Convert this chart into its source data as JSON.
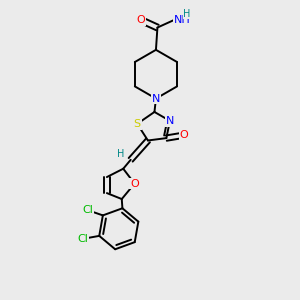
{
  "bg_color": "#ebebeb",
  "colors": {
    "O": "#ff0000",
    "N": "#0000ff",
    "S": "#cccc00",
    "Cl": "#00bb00",
    "H": "#008888",
    "C": "#000000"
  },
  "lw": 1.4,
  "dlw": 1.4,
  "fs": 7.5,
  "doff": 0.009
}
